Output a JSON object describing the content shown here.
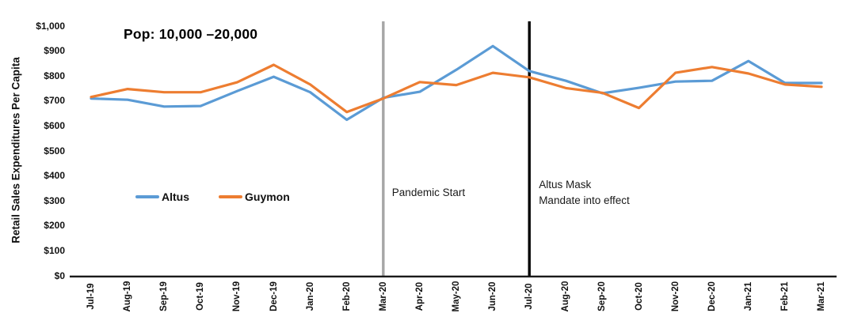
{
  "chart_data": {
    "type": "line",
    "title": "Pop: 10,000 –20,000",
    "ylabel": "Retail Sales Expenditures Per Capita",
    "xlabel": "",
    "ylim": [
      0,
      1000
    ],
    "grid": false,
    "legend_position": "inside-left-middle",
    "y_ticks": [
      {
        "value": 0,
        "label": "$0"
      },
      {
        "value": 100,
        "label": "$100"
      },
      {
        "value": 200,
        "label": "$200"
      },
      {
        "value": 300,
        "label": "$300"
      },
      {
        "value": 400,
        "label": "$400"
      },
      {
        "value": 500,
        "label": "$500"
      },
      {
        "value": 600,
        "label": "$600"
      },
      {
        "value": 700,
        "label": "$700"
      },
      {
        "value": 800,
        "label": "$800"
      },
      {
        "value": 900,
        "label": "$900"
      },
      {
        "value": 1000,
        "label": "$1,000"
      }
    ],
    "categories": [
      "Jul-19",
      "Aug-19",
      "Sep-19",
      "Oct-19",
      "Nov-19",
      "Dec-19",
      "Jan-20",
      "Feb-20",
      "Mar-20",
      "Apr-20",
      "May-20",
      "Jun-20",
      "Jul-20",
      "Aug-20",
      "Sep-20",
      "Oct-20",
      "Nov-20",
      "Dec-20",
      "Jan-21",
      "Feb-21",
      "Mar-21"
    ],
    "series": [
      {
        "name": "Altus",
        "color": "#5B9BD5",
        "values": [
          710,
          705,
          678,
          680,
          740,
          797,
          735,
          625,
          713,
          737,
          825,
          920,
          820,
          781,
          731,
          753,
          778,
          781,
          860,
          772,
          772
        ]
      },
      {
        "name": "Guymon",
        "color": "#ED7D31",
        "values": [
          716,
          748,
          735,
          735,
          775,
          845,
          766,
          656,
          710,
          776,
          764,
          813,
          795,
          752,
          733,
          672,
          813,
          836,
          810,
          766,
          757
        ]
      }
    ],
    "annotations": [
      {
        "label": "Pandemic Start",
        "category": "Mar-20",
        "line_color": "#A6A6A6"
      },
      {
        "label": "Altus Mask\nMandate into effect",
        "category": "Jul-20",
        "line_color": "#000000"
      }
    ],
    "axis_color": "#1a1a1a"
  }
}
